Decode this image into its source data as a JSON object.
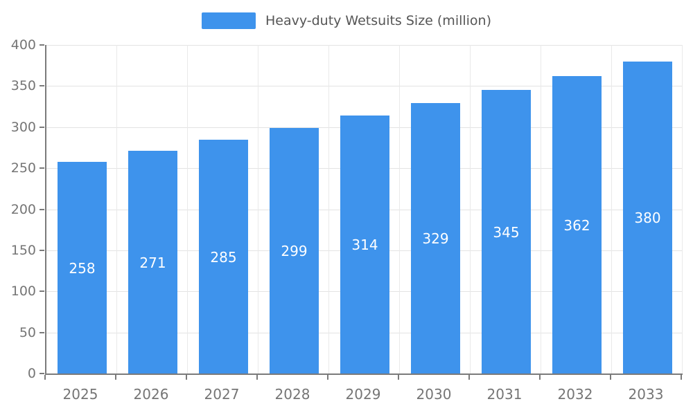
{
  "chart_data": {
    "type": "bar",
    "title": "Heavy-duty Wetsuits Size (million)",
    "categories": [
      "2025",
      "2026",
      "2027",
      "2028",
      "2029",
      "2030",
      "2031",
      "2032",
      "2033"
    ],
    "values": [
      258,
      271,
      285,
      299,
      314,
      329,
      345,
      362,
      380
    ],
    "xlabel": "",
    "ylabel": "",
    "ylim": [
      0,
      400
    ],
    "ytick_step": 50,
    "grid": true,
    "legend_position": "top-center",
    "bar_color": "#3e93ec",
    "value_label_color": "#ffffff",
    "axis_color": "#7a7a7a",
    "tick_label_color": "#757575"
  }
}
